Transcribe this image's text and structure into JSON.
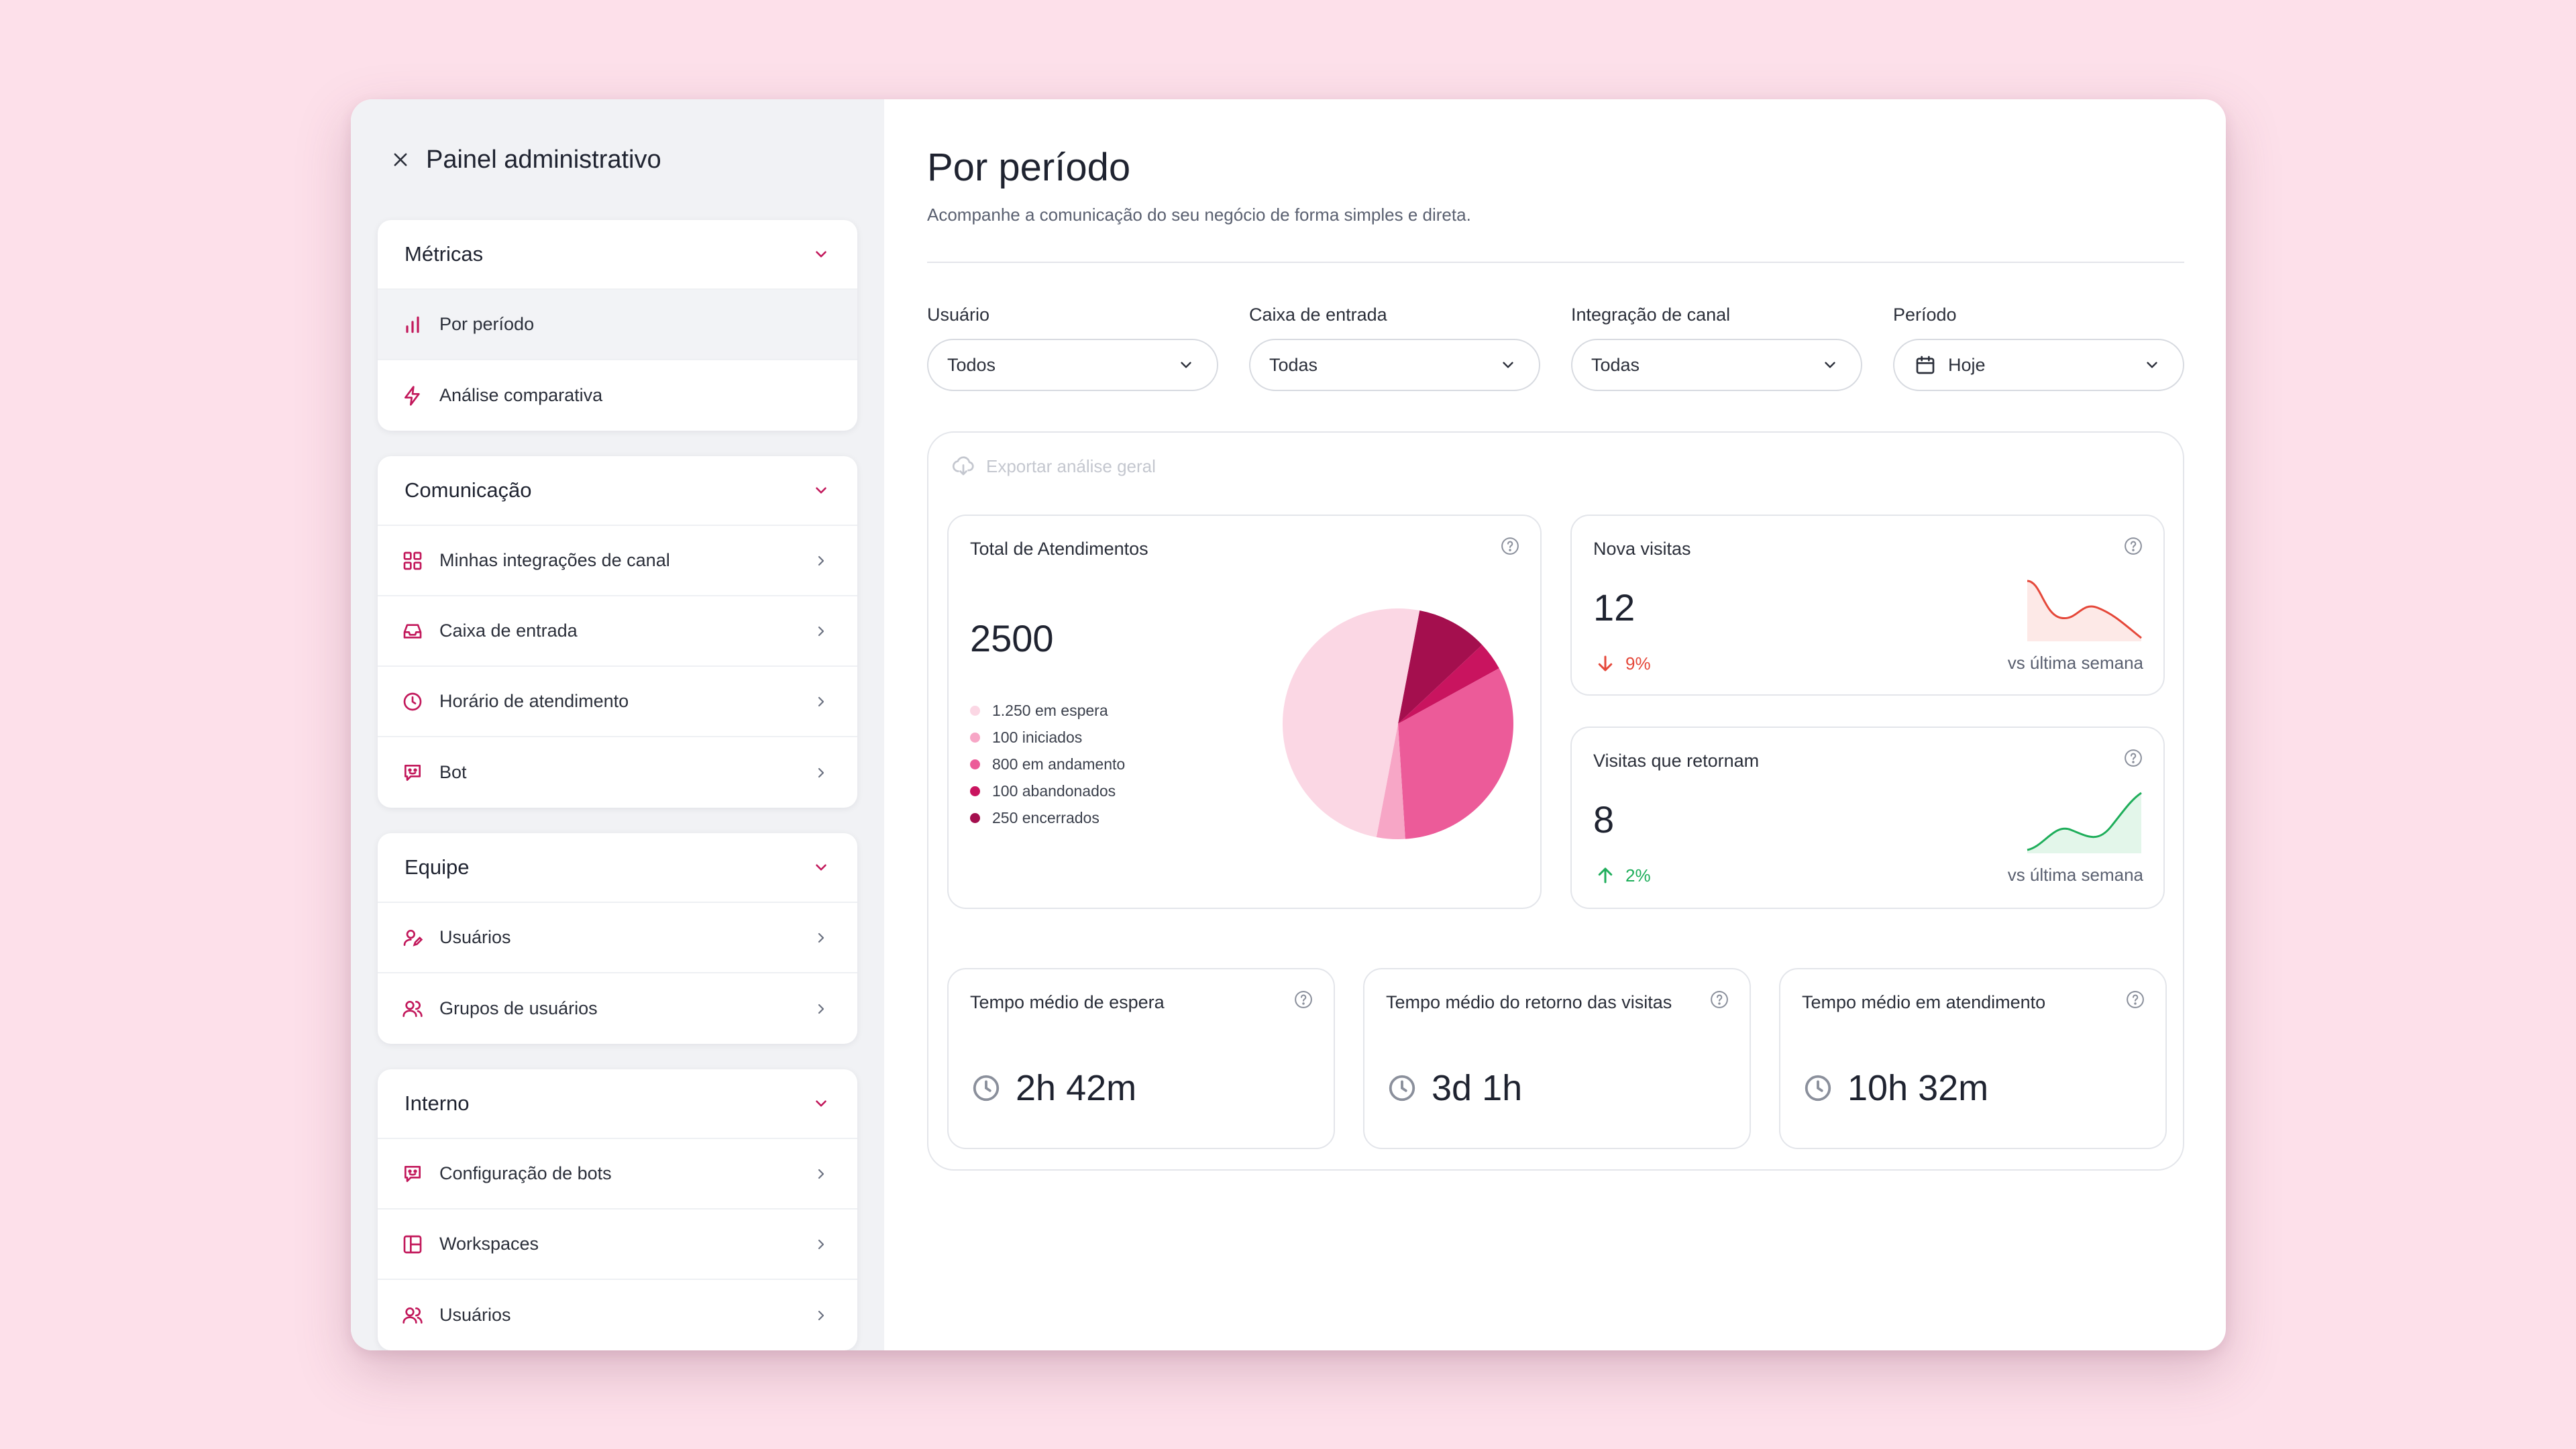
{
  "sidebar": {
    "title": "Painel administrativo",
    "groups": [
      {
        "title": "Métricas",
        "items": [
          {
            "label": "Por período"
          },
          {
            "label": "Análise comparativa"
          }
        ]
      },
      {
        "title": "Comunicação",
        "items": [
          {
            "label": "Minhas integrações de canal"
          },
          {
            "label": "Caixa de entrada"
          },
          {
            "label": "Horário de atendimento"
          },
          {
            "label": "Bot"
          }
        ]
      },
      {
        "title": "Equipe",
        "items": [
          {
            "label": "Usuários"
          },
          {
            "label": "Grupos de usuários"
          }
        ]
      },
      {
        "title": "Interno",
        "items": [
          {
            "label": "Configuração de bots"
          },
          {
            "label": "Workspaces"
          },
          {
            "label": "Usuários"
          }
        ]
      }
    ]
  },
  "header": {
    "title": "Por período",
    "subtitle": "Acompanhe a comunicação do seu negócio de forma simples e direta."
  },
  "filters": [
    {
      "label": "Usuário",
      "value": "Todos"
    },
    {
      "label": "Caixa de entrada",
      "value": "Todas"
    },
    {
      "label": "Integração de canal",
      "value": "Todas"
    },
    {
      "label": "Período",
      "value": "Hoje"
    }
  ],
  "export_label": "Exportar análise geral",
  "total": {
    "title": "Total de Atendimentos",
    "value": "2500",
    "legend": [
      "1.250 em espera",
      "100 iniciados",
      "800 em andamento",
      "100 abandonados",
      "250 encerrados"
    ]
  },
  "chart_data": {
    "type": "pie",
    "title": "Total de Atendimentos",
    "categories": [
      "em espera",
      "iniciados",
      "em andamento",
      "abandonados",
      "encerrados"
    ],
    "values": [
      1250,
      100,
      800,
      100,
      250
    ],
    "colors": [
      "#fbd7e4",
      "#f7a6c6",
      "#ec5b99",
      "#c9145f",
      "#a40f4e"
    ]
  },
  "nova": {
    "title": "Nova visitas",
    "value": "12",
    "delta": "9%",
    "vs": "vs última semana",
    "color": "#e5483a"
  },
  "retornam": {
    "title": "Visitas que retornam",
    "value": "8",
    "delta": "2%",
    "vs": "vs última semana",
    "color": "#1fae5b"
  },
  "times": [
    {
      "title": "Tempo médio de espera",
      "value": "2h 42m"
    },
    {
      "title": "Tempo médio do retorno das visitas",
      "value": "3d 1h"
    },
    {
      "title": "Tempo médio em atendimento",
      "value": "10h 32m"
    }
  ],
  "colors": {
    "accent": "#c2185b",
    "background": "#fde0ea"
  }
}
